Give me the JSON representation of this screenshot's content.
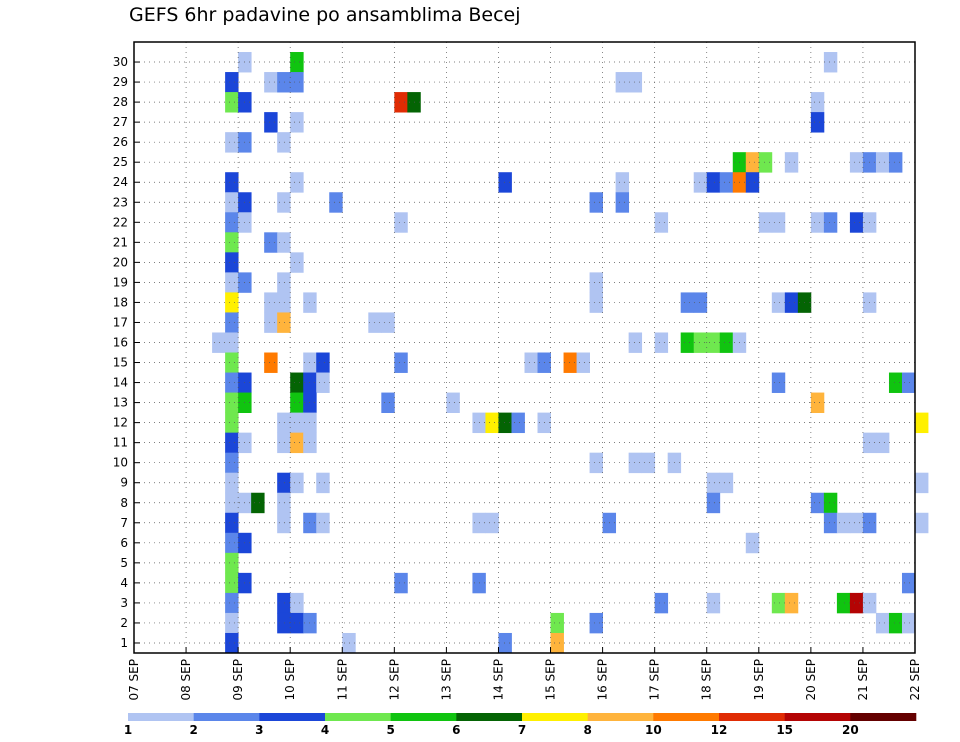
{
  "chart_data": {
    "type": "heatmap",
    "title": "GEFS 6hr padavine po ansamblima Becej",
    "x_labels": [
      "07 SEP",
      "08 SEP",
      "09 SEP",
      "10 SEP",
      "11 SEP",
      "12 SEP",
      "13 SEP",
      "14 SEP",
      "15 SEP",
      "16 SEP",
      "17 SEP",
      "18 SEP",
      "19 SEP",
      "20 SEP",
      "21 SEP",
      "22 SEP"
    ],
    "x_steps_per_day": 4,
    "y_labels": [
      1,
      2,
      3,
      4,
      5,
      6,
      7,
      8,
      9,
      10,
      11,
      12,
      13,
      14,
      15,
      16,
      17,
      18,
      19,
      20,
      21,
      22,
      23,
      24,
      25,
      26,
      27,
      28,
      29,
      30
    ],
    "grid": "dotted",
    "colorbar": {
      "levels": [
        "1",
        "2",
        "3",
        "4",
        "5",
        "6",
        "7",
        "8",
        "10",
        "12",
        "15",
        "20"
      ],
      "colors": [
        "#b0c4f2",
        "#5b86ea",
        "#1b46d8",
        "#6fe84f",
        "#10c410",
        "#046404",
        "#fff000",
        "#ffb43c",
        "#ff7a00",
        "#e02c04",
        "#b40404",
        "#640000"
      ]
    },
    "cells": [
      [
        8,
        30,
        0
      ],
      [
        12,
        30,
        4
      ],
      [
        53,
        30,
        0
      ],
      [
        7,
        29,
        2
      ],
      [
        10,
        29,
        0
      ],
      [
        11,
        29,
        1
      ],
      [
        12,
        29,
        1
      ],
      [
        37,
        29,
        0
      ],
      [
        38,
        29,
        0
      ],
      [
        7,
        28,
        3
      ],
      [
        8,
        28,
        2
      ],
      [
        20,
        28,
        9
      ],
      [
        21,
        28,
        5
      ],
      [
        52,
        28,
        0
      ],
      [
        10,
        27,
        2
      ],
      [
        12,
        27,
        0
      ],
      [
        52,
        27,
        2
      ],
      [
        7,
        26,
        0
      ],
      [
        8,
        26,
        1
      ],
      [
        11,
        26,
        0
      ],
      [
        46,
        25,
        4
      ],
      [
        47,
        25,
        7
      ],
      [
        48,
        25,
        3
      ],
      [
        50,
        25,
        0
      ],
      [
        55,
        25,
        0
      ],
      [
        56,
        25,
        1
      ],
      [
        57,
        25,
        0
      ],
      [
        58,
        25,
        1
      ],
      [
        7,
        24,
        2
      ],
      [
        12,
        24,
        0
      ],
      [
        28,
        24,
        2
      ],
      [
        37,
        24,
        0
      ],
      [
        43,
        24,
        0
      ],
      [
        44,
        24,
        2
      ],
      [
        45,
        24,
        1
      ],
      [
        46,
        24,
        8
      ],
      [
        47,
        24,
        2
      ],
      [
        7,
        23,
        0
      ],
      [
        8,
        23,
        2
      ],
      [
        11,
        23,
        0
      ],
      [
        15,
        23,
        1
      ],
      [
        35,
        23,
        1
      ],
      [
        37,
        23,
        1
      ],
      [
        7,
        22,
        1
      ],
      [
        8,
        22,
        0
      ],
      [
        20,
        22,
        0
      ],
      [
        40,
        22,
        0
      ],
      [
        48,
        22,
        0
      ],
      [
        49,
        22,
        0
      ],
      [
        52,
        22,
        0
      ],
      [
        53,
        22,
        1
      ],
      [
        55,
        22,
        2
      ],
      [
        56,
        22,
        0
      ],
      [
        7,
        21,
        3
      ],
      [
        10,
        21,
        1
      ],
      [
        11,
        21,
        0
      ],
      [
        7,
        20,
        2
      ],
      [
        12,
        20,
        0
      ],
      [
        7,
        19,
        0
      ],
      [
        8,
        19,
        1
      ],
      [
        11,
        19,
        0
      ],
      [
        35,
        19,
        0
      ],
      [
        7,
        18,
        6
      ],
      [
        10,
        18,
        0
      ],
      [
        11,
        18,
        0
      ],
      [
        13,
        18,
        0
      ],
      [
        35,
        18,
        0
      ],
      [
        42,
        18,
        1
      ],
      [
        43,
        18,
        1
      ],
      [
        49,
        18,
        0
      ],
      [
        50,
        18,
        2
      ],
      [
        51,
        18,
        5
      ],
      [
        56,
        18,
        0
      ],
      [
        7,
        17,
        1
      ],
      [
        10,
        17,
        0
      ],
      [
        11,
        17,
        7
      ],
      [
        18,
        17,
        0
      ],
      [
        19,
        17,
        0
      ],
      [
        6,
        16,
        0
      ],
      [
        7,
        16,
        0
      ],
      [
        38,
        16,
        0
      ],
      [
        40,
        16,
        0
      ],
      [
        42,
        16,
        4
      ],
      [
        43,
        16,
        3
      ],
      [
        44,
        16,
        3
      ],
      [
        45,
        16,
        4
      ],
      [
        46,
        16,
        0
      ],
      [
        7,
        15,
        3
      ],
      [
        10,
        15,
        8
      ],
      [
        13,
        15,
        0
      ],
      [
        14,
        15,
        2
      ],
      [
        20,
        15,
        1
      ],
      [
        30,
        15,
        0
      ],
      [
        31,
        15,
        1
      ],
      [
        33,
        15,
        8
      ],
      [
        34,
        15,
        0
      ],
      [
        7,
        14,
        1
      ],
      [
        8,
        14,
        2
      ],
      [
        12,
        14,
        5
      ],
      [
        13,
        14,
        2
      ],
      [
        14,
        14,
        0
      ],
      [
        49,
        14,
        1
      ],
      [
        58,
        14,
        4
      ],
      [
        59,
        14,
        1
      ],
      [
        7,
        13,
        3
      ],
      [
        8,
        13,
        4
      ],
      [
        12,
        13,
        4
      ],
      [
        13,
        13,
        2
      ],
      [
        19,
        13,
        1
      ],
      [
        24,
        13,
        0
      ],
      [
        52,
        13,
        7
      ],
      [
        7,
        12,
        3
      ],
      [
        11,
        12,
        0
      ],
      [
        12,
        12,
        0
      ],
      [
        13,
        12,
        0
      ],
      [
        26,
        12,
        0
      ],
      [
        27,
        12,
        6
      ],
      [
        28,
        12,
        5
      ],
      [
        29,
        12,
        1
      ],
      [
        31,
        12,
        0
      ],
      [
        60,
        12,
        6
      ],
      [
        7,
        11,
        2
      ],
      [
        8,
        11,
        0
      ],
      [
        11,
        11,
        0
      ],
      [
        12,
        11,
        7
      ],
      [
        13,
        11,
        0
      ],
      [
        56,
        11,
        0
      ],
      [
        57,
        11,
        0
      ],
      [
        7,
        10,
        1
      ],
      [
        35,
        10,
        0
      ],
      [
        38,
        10,
        0
      ],
      [
        39,
        10,
        0
      ],
      [
        41,
        10,
        0
      ],
      [
        7,
        9,
        0
      ],
      [
        11,
        9,
        2
      ],
      [
        12,
        9,
        0
      ],
      [
        14,
        9,
        0
      ],
      [
        44,
        9,
        0
      ],
      [
        45,
        9,
        0
      ],
      [
        60,
        9,
        0
      ],
      [
        7,
        8,
        0
      ],
      [
        8,
        8,
        0
      ],
      [
        9,
        8,
        5
      ],
      [
        11,
        8,
        0
      ],
      [
        44,
        8,
        1
      ],
      [
        52,
        8,
        1
      ],
      [
        53,
        8,
        4
      ],
      [
        7,
        7,
        2
      ],
      [
        11,
        7,
        0
      ],
      [
        13,
        7,
        1
      ],
      [
        14,
        7,
        0
      ],
      [
        26,
        7,
        0
      ],
      [
        27,
        7,
        0
      ],
      [
        36,
        7,
        1
      ],
      [
        53,
        7,
        1
      ],
      [
        54,
        7,
        0
      ],
      [
        55,
        7,
        0
      ],
      [
        56,
        7,
        1
      ],
      [
        60,
        7,
        0
      ],
      [
        7,
        6,
        1
      ],
      [
        8,
        6,
        2
      ],
      [
        47,
        6,
        0
      ],
      [
        7,
        5,
        3
      ],
      [
        7,
        4,
        3
      ],
      [
        8,
        4,
        2
      ],
      [
        20,
        4,
        1
      ],
      [
        26,
        4,
        1
      ],
      [
        59,
        4,
        1
      ],
      [
        7,
        3,
        1
      ],
      [
        11,
        3,
        2
      ],
      [
        12,
        3,
        0
      ],
      [
        40,
        3,
        1
      ],
      [
        44,
        3,
        0
      ],
      [
        49,
        3,
        3
      ],
      [
        50,
        3,
        7
      ],
      [
        54,
        3,
        4
      ],
      [
        55,
        3,
        10
      ],
      [
        56,
        3,
        0
      ],
      [
        7,
        2,
        0
      ],
      [
        11,
        2,
        2
      ],
      [
        12,
        2,
        2
      ],
      [
        13,
        2,
        1
      ],
      [
        32,
        2,
        3
      ],
      [
        35,
        2,
        1
      ],
      [
        57,
        2,
        0
      ],
      [
        58,
        2,
        4
      ],
      [
        59,
        2,
        0
      ],
      [
        7,
        1,
        2
      ],
      [
        16,
        1,
        0
      ],
      [
        28,
        1,
        1
      ],
      [
        32,
        1,
        7
      ]
    ]
  }
}
